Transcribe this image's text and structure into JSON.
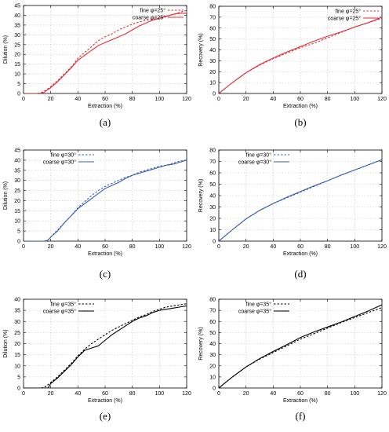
{
  "chart_data": [
    {
      "id": "a",
      "panel_label": "(a)",
      "type": "line",
      "xlabel": "Extraction (%)",
      "ylabel": "Dilution (%)",
      "xlim": [
        0,
        120
      ],
      "ylim": [
        0,
        45
      ],
      "grid": true,
      "legend_position": "top-right",
      "xticks": [
        0,
        20,
        40,
        60,
        80,
        100,
        120
      ],
      "yticks": [
        0,
        5,
        10,
        15,
        20,
        25,
        30,
        35,
        40,
        45
      ],
      "series": [
        {
          "name": "fine φ=25°",
          "style": "dashed",
          "color": "#e0303a",
          "x": [
            0,
            10,
            13,
            16,
            20,
            25,
            30,
            35,
            40,
            45,
            50,
            55,
            60,
            65,
            70,
            75,
            80,
            85,
            90,
            95,
            100,
            105,
            110,
            115,
            120
          ],
          "y": [
            0,
            0,
            0.5,
            1.5,
            3.5,
            6.5,
            10,
            13.5,
            18,
            21,
            24,
            27,
            29,
            30.5,
            32.5,
            34,
            35.5,
            36.5,
            37.5,
            38,
            38.5,
            39.2,
            40.5,
            41.5,
            42.5
          ]
        },
        {
          "name": "coarse φ=25°",
          "style": "solid",
          "color": "#e0303a",
          "x": [
            0,
            12,
            15,
            18,
            20,
            25,
            30,
            35,
            40,
            45,
            50,
            55,
            60,
            65,
            70,
            75,
            80,
            85,
            90,
            95,
            100,
            105,
            110,
            115,
            120
          ],
          "y": [
            0,
            0,
            0.5,
            2,
            3,
            6,
            9.5,
            13,
            17,
            19.5,
            22,
            24.5,
            26,
            27.5,
            29,
            30.5,
            32.5,
            34.5,
            36,
            37.5,
            38.5,
            39.5,
            40.5,
            41,
            41
          ]
        }
      ]
    },
    {
      "id": "b",
      "panel_label": "(b)",
      "type": "line",
      "xlabel": "Extraction (%)",
      "ylabel": "Recovery (%)",
      "xlim": [
        0,
        120
      ],
      "ylim": [
        0,
        80
      ],
      "grid": true,
      "legend_position": "top-right",
      "xticks": [
        0,
        20,
        40,
        60,
        80,
        100,
        120
      ],
      "yticks": [
        0,
        10,
        20,
        30,
        40,
        50,
        60,
        70,
        80
      ],
      "series": [
        {
          "name": "fine φ=25°",
          "style": "dashed",
          "color": "#e0303a",
          "x": [
            0,
            10,
            20,
            30,
            40,
            50,
            60,
            70,
            80,
            90,
            100,
            110,
            120
          ],
          "y": [
            0,
            10,
            19,
            26,
            32,
            37,
            42,
            46,
            51,
            56,
            61,
            65,
            69
          ]
        },
        {
          "name": "coarse φ=25°",
          "style": "solid",
          "color": "#e0303a",
          "x": [
            0,
            10,
            20,
            30,
            40,
            50,
            60,
            70,
            80,
            90,
            100,
            110,
            115,
            120
          ],
          "y": [
            0,
            10,
            19,
            26.5,
            32.5,
            38,
            43,
            48,
            52.5,
            56.5,
            61,
            65,
            67.5,
            70
          ]
        }
      ]
    },
    {
      "id": "c",
      "panel_label": "(c)",
      "type": "line",
      "xlabel": "Extraction (%)",
      "ylabel": "Dilution (%)",
      "xlim": [
        0,
        120
      ],
      "ylim": [
        0,
        45
      ],
      "grid": true,
      "legend_position": "top-left",
      "xticks": [
        0,
        20,
        40,
        60,
        80,
        100,
        120
      ],
      "yticks": [
        0,
        5,
        10,
        15,
        20,
        25,
        30,
        35,
        40,
        45
      ],
      "series": [
        {
          "name": "fine φ=30°",
          "style": "dashed",
          "color": "#3a5fb0",
          "x": [
            0,
            15,
            18,
            20,
            25,
            30,
            35,
            40,
            45,
            50,
            55,
            60,
            65,
            70,
            75,
            80,
            85,
            90,
            95,
            100,
            105,
            110,
            115,
            120
          ],
          "y": [
            0,
            0,
            0.5,
            2,
            5.5,
            9,
            12.5,
            16.5,
            19.5,
            22.5,
            25,
            27,
            28.5,
            30,
            31.5,
            32.5,
            34,
            35,
            36,
            37,
            37.5,
            38.5,
            39.5,
            40
          ]
        },
        {
          "name": "coarse φ=30°",
          "style": "solid",
          "color": "#3a5fb0",
          "x": [
            0,
            16,
            18,
            20,
            25,
            30,
            35,
            40,
            45,
            50,
            55,
            60,
            65,
            70,
            75,
            80,
            85,
            90,
            95,
            100,
            105,
            110,
            115,
            120
          ],
          "y": [
            0,
            0,
            0.5,
            2,
            5,
            9,
            12.5,
            16,
            18.5,
            21,
            23.5,
            26,
            27.5,
            29,
            31,
            32.5,
            33.5,
            34.5,
            35.5,
            36.5,
            37.5,
            38,
            39,
            40
          ]
        }
      ]
    },
    {
      "id": "d",
      "panel_label": "(d)",
      "type": "line",
      "xlabel": "Extraction (%)",
      "ylabel": "Recovery (%)",
      "xlim": [
        0,
        120
      ],
      "ylim": [
        0,
        80
      ],
      "grid": true,
      "legend_position": "top-left",
      "xticks": [
        0,
        20,
        40,
        60,
        80,
        100,
        120
      ],
      "yticks": [
        0,
        10,
        20,
        30,
        40,
        50,
        60,
        70,
        80
      ],
      "series": [
        {
          "name": "fine φ=30°",
          "style": "dashed",
          "color": "#3a5fb0",
          "x": [
            0,
            10,
            20,
            30,
            40,
            50,
            60,
            70,
            80,
            90,
            100,
            110,
            120
          ],
          "y": [
            0,
            10,
            19.5,
            27,
            33,
            38,
            43,
            48,
            53,
            58,
            62.5,
            67,
            71.5
          ]
        },
        {
          "name": "coarse φ=30°",
          "style": "solid",
          "color": "#3a5fb0",
          "x": [
            0,
            10,
            20,
            30,
            40,
            50,
            60,
            70,
            80,
            90,
            100,
            110,
            120
          ],
          "y": [
            0,
            10,
            19.5,
            27,
            33,
            38.5,
            43.5,
            48.5,
            53,
            58,
            62.5,
            67,
            71.5
          ]
        }
      ]
    },
    {
      "id": "e",
      "panel_label": "(e)",
      "type": "line",
      "xlabel": "Extraction (%)",
      "ylabel": "Dilution (%)",
      "xlim": [
        0,
        120
      ],
      "ylim": [
        0,
        40
      ],
      "grid": true,
      "legend_position": "top-left",
      "xticks": [
        0,
        20,
        40,
        60,
        80,
        100,
        120
      ],
      "yticks": [
        0,
        5,
        10,
        15,
        20,
        25,
        30,
        35,
        40
      ],
      "series": [
        {
          "name": "fine φ=35°",
          "style": "dashed",
          "color": "#000000",
          "x": [
            0,
            13,
            16,
            20,
            25,
            30,
            35,
            40,
            45,
            50,
            55,
            60,
            65,
            70,
            75,
            80,
            85,
            90,
            95,
            100,
            105,
            110,
            115,
            120
          ],
          "y": [
            0,
            0,
            0.5,
            2.5,
            5,
            8,
            11,
            14.5,
            17.5,
            20,
            22,
            24,
            26,
            27.5,
            29,
            30.5,
            32,
            33,
            34.5,
            35.5,
            36.5,
            37,
            37.5,
            38
          ]
        },
        {
          "name": "coarse φ=35°",
          "style": "solid",
          "color": "#000000",
          "x": [
            0,
            18,
            20,
            25,
            30,
            35,
            40,
            45,
            50,
            55,
            60,
            65,
            70,
            75,
            80,
            85,
            90,
            95,
            100,
            105,
            110,
            115,
            120
          ],
          "y": [
            0,
            0,
            2,
            4.5,
            7.5,
            10.5,
            14,
            17,
            18,
            19,
            21.5,
            24,
            26,
            28,
            30,
            31.5,
            32.5,
            34,
            35,
            35.5,
            36,
            36.5,
            37
          ]
        }
      ]
    },
    {
      "id": "f",
      "panel_label": "(f)",
      "type": "line",
      "xlabel": "Extraction (%)",
      "ylabel": "Recovery (%)",
      "xlim": [
        0,
        120
      ],
      "ylim": [
        0,
        80
      ],
      "grid": true,
      "legend_position": "top-left",
      "xticks": [
        0,
        20,
        40,
        60,
        80,
        100,
        120
      ],
      "yticks": [
        0,
        10,
        20,
        30,
        40,
        50,
        60,
        70,
        80
      ],
      "series": [
        {
          "name": "fine φ=35°",
          "style": "dashed",
          "color": "#000000",
          "x": [
            0,
            10,
            20,
            30,
            40,
            50,
            60,
            70,
            80,
            90,
            100,
            110,
            120
          ],
          "y": [
            0,
            10,
            19,
            26,
            32,
            38,
            44,
            49,
            54,
            59,
            63.5,
            68,
            72.5
          ]
        },
        {
          "name": "coarse φ=35°",
          "style": "solid",
          "color": "#000000",
          "x": [
            0,
            10,
            20,
            30,
            40,
            50,
            60,
            70,
            80,
            90,
            100,
            110,
            120
          ],
          "y": [
            0,
            10,
            19,
            26.5,
            33,
            39,
            45.5,
            50.5,
            55,
            59.5,
            64.5,
            69.5,
            75
          ]
        }
      ]
    }
  ]
}
